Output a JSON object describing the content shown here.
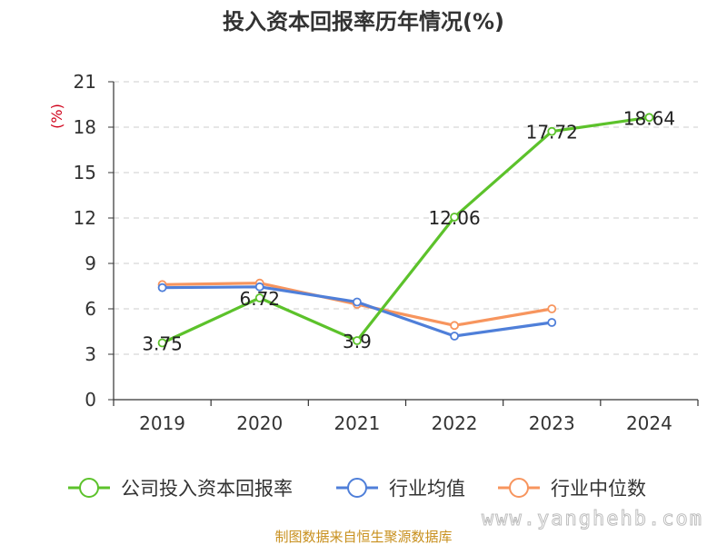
{
  "chart_data": {
    "type": "line",
    "title": "投入资本回报率历年情况(%)",
    "ylabel": "(%)",
    "categories": [
      "2019",
      "2020",
      "2021",
      "2022",
      "2023",
      "2024"
    ],
    "ylim": [
      0,
      21
    ],
    "yticks": [
      0,
      3,
      6,
      9,
      12,
      15,
      18,
      21
    ],
    "grid": true,
    "legend_position": "bottom",
    "series": [
      {
        "name": "公司投入资本回报率",
        "color": "#5cc22b",
        "values": [
          3.75,
          6.72,
          3.9,
          12.06,
          17.72,
          18.64
        ],
        "labels": [
          "3.75",
          "6.72",
          "3.9",
          "12.06",
          "17.72",
          "18.64"
        ]
      },
      {
        "name": "行业均值",
        "color": "#4f7fd9",
        "values": [
          7.4,
          7.45,
          6.45,
          4.2,
          5.1,
          null
        ]
      },
      {
        "name": "行业中位数",
        "color": "#f7955e",
        "values": [
          7.6,
          7.7,
          6.3,
          4.9,
          6.0,
          null
        ]
      }
    ]
  },
  "footer": {
    "source": "制图数据来自恒生聚源数据库",
    "watermark": "www.yanghehb.com"
  }
}
